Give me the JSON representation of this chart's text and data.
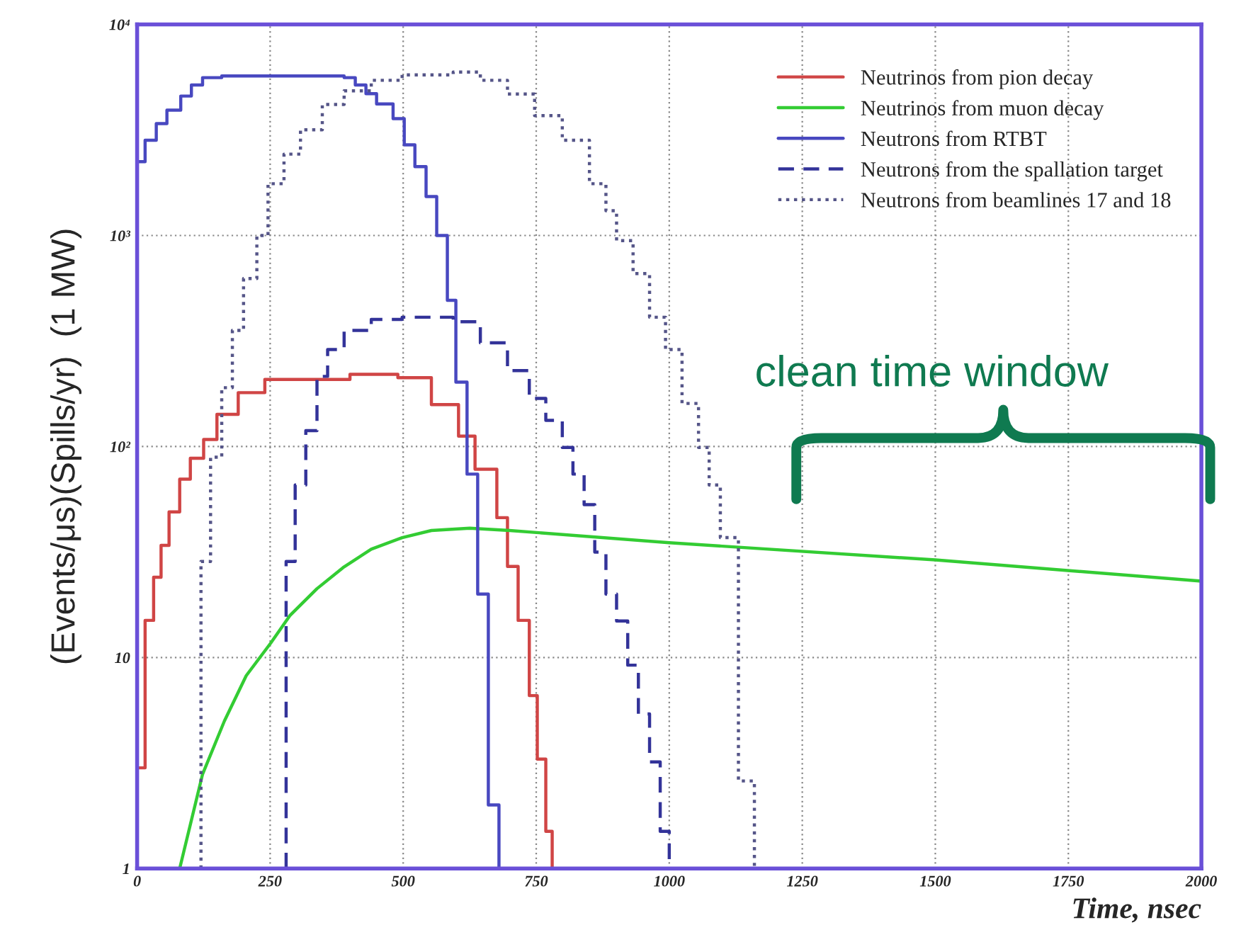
{
  "chart_data": {
    "type": "step",
    "xlabel": "Time, nsec",
    "ylabel": "(Events/μs)(Spills/yr)  (1 MW)",
    "log": "y",
    "grid": true,
    "legend": "top right",
    "xlim": [
      0,
      2000
    ],
    "xticks": [
      0,
      250,
      500,
      750,
      1000,
      1250,
      1500,
      1750,
      2000
    ],
    "ylim": [
      1,
      10000
    ],
    "yticks": [
      1,
      10,
      {
        "value": 100,
        "label": "10²"
      },
      {
        "value": 1000,
        "label": "10³"
      },
      {
        "value": 10000,
        "label": "10⁴"
      }
    ],
    "annotations": [
      "clean time window"
    ],
    "series": [
      {
        "name": "Neutrinos from pion decay",
        "color": "#d04545",
        "line_style": "solid",
        "x": [
          0,
          15,
          31,
          45,
          60,
          80,
          100,
          125,
          150,
          190,
          240,
          400,
          490,
          553,
          604,
          635,
          676,
          696,
          716,
          737,
          752,
          768,
          780
        ],
        "values": [
          3,
          15,
          24,
          34,
          49,
          70,
          88,
          108,
          142,
          180,
          208,
          220,
          212,
          158,
          112,
          78,
          46,
          27,
          15,
          6.6,
          3.3,
          1.5,
          1
        ]
      },
      {
        "name": "Neutrinos from muon decay",
        "type": "line",
        "color": "#33cc33",
        "line_style": "solid",
        "x": [
          80,
          123,
          164,
          205,
          251,
          287,
          338,
          389,
          440,
          498,
          553,
          625,
          700,
          1000,
          1500,
          2000
        ],
        "values": [
          1,
          2.8,
          5,
          8.2,
          11.7,
          15.8,
          21.2,
          26.9,
          32.6,
          37,
          40,
          41,
          40,
          35,
          29,
          23
        ]
      },
      {
        "name": "Neutrons from RTBT",
        "color": "#4848c0",
        "line_style": "solid",
        "x": [
          0,
          15,
          36,
          56,
          82,
          102,
          123,
          159,
          389,
          410,
          430,
          450,
          481,
          502,
          522,
          543,
          563,
          583,
          599,
          620,
          640,
          660,
          680
        ],
        "values": [
          2240,
          2830,
          3390,
          3930,
          4580,
          5170,
          5600,
          5700,
          5600,
          5170,
          4700,
          4200,
          3580,
          2690,
          2120,
          1530,
          1000,
          493,
          202,
          74,
          20,
          2,
          1
        ]
      },
      {
        "name": "Neutrons from the spallation target",
        "color": "#333399",
        "line_style": "dashed",
        "x": [
          280,
          280,
          297,
          317,
          338,
          358,
          389,
          440,
          498,
          553,
          594,
          645,
          696,
          737,
          768,
          799,
          819,
          840,
          860,
          881,
          901,
          922,
          942,
          963,
          983,
          1000
        ],
        "values": [
          1,
          28.5,
          65.7,
          119,
          215,
          288,
          355,
          400,
          410,
          410,
          390,
          310,
          229,
          169,
          133,
          99,
          74,
          53,
          31.6,
          20,
          14.9,
          9.2,
          5.4,
          3.2,
          1.5,
          1
        ]
      },
      {
        "name": "Neutrons from beamlines 17 and 18",
        "color": "#555588",
        "line_style": "dotted",
        "x": [
          120,
          120,
          138,
          159,
          179,
          200,
          225,
          246,
          276,
          307,
          348,
          389,
          440,
          498,
          594,
          645,
          696,
          747,
          799,
          850,
          881,
          901,
          932,
          963,
          993,
          1024,
          1055,
          1075,
          1096,
          1130,
          1160
        ],
        "values": [
          1,
          28.5,
          89,
          190,
          355,
          625,
          1000,
          1760,
          2430,
          3170,
          4180,
          4850,
          5440,
          5770,
          5950,
          5440,
          4680,
          3700,
          2830,
          1760,
          1310,
          946,
          660,
          410,
          288,
          160,
          99,
          65.7,
          37,
          2.6,
          1
        ]
      }
    ]
  }
}
